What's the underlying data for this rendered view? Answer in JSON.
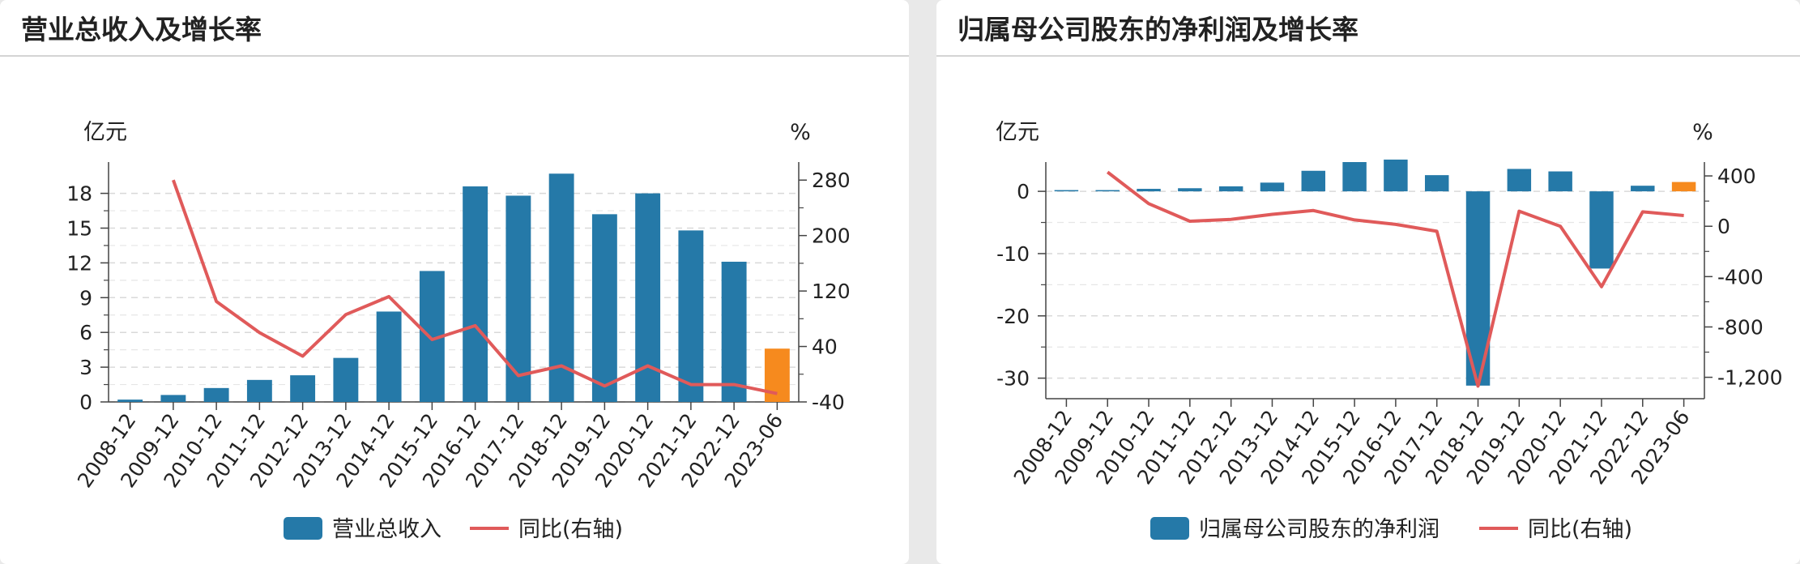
{
  "panels": [
    {
      "title": "营业总收入及增长率",
      "chart_data": {
        "type": "bar",
        "categories": [
          "2008-12",
          "2009-12",
          "2010-12",
          "2011-12",
          "2012-12",
          "2013-12",
          "2014-12",
          "2015-12",
          "2016-12",
          "2017-12",
          "2018-12",
          "2019-12",
          "2020-12",
          "2021-12",
          "2022-12",
          "2023-06"
        ],
        "series": [
          {
            "name": "营业总收入",
            "type": "bar",
            "axis": "left",
            "color": "#2579a8",
            "highlight_color": "#f68a1e",
            "highlight_index": 15,
            "values": [
              0.2,
              0.6,
              1.2,
              1.9,
              2.3,
              3.8,
              7.8,
              11.3,
              18.6,
              17.8,
              19.7,
              16.2,
              18.0,
              14.8,
              12.1,
              4.6
            ]
          },
          {
            "name": "同比(右轴)",
            "type": "line",
            "axis": "right",
            "color": "#e05a5a",
            "values": [
              null,
              280,
              105,
              60,
              26,
              86,
              112,
              50,
              70,
              -2,
              12,
              -17,
              12,
              -15,
              -15,
              -28
            ]
          }
        ],
        "left_unit": "亿元",
        "right_unit": "%",
        "left_ticks": [
          0,
          3,
          6,
          9,
          12,
          15,
          18
        ],
        "left_ylim": [
          0,
          20.7
        ],
        "right_ticks": [
          -40,
          40,
          120,
          200,
          280
        ],
        "right_ylim": [
          -40,
          306
        ],
        "grid": true,
        "legend_position": "bottom"
      }
    },
    {
      "title": "归属母公司股东的净利润及增长率",
      "chart_data": {
        "type": "bar",
        "categories": [
          "2008-12",
          "2009-12",
          "2010-12",
          "2011-12",
          "2012-12",
          "2013-12",
          "2014-12",
          "2015-12",
          "2016-12",
          "2017-12",
          "2018-12",
          "2019-12",
          "2020-12",
          "2021-12",
          "2022-12",
          "2023-06"
        ],
        "series": [
          {
            "name": "归属母公司股东的净利润",
            "type": "bar",
            "axis": "left",
            "color": "#2579a8",
            "highlight_color": "#f68a1e",
            "highlight_index": 15,
            "values": [
              0.2,
              0.2,
              0.4,
              0.5,
              0.8,
              1.4,
              3.3,
              4.7,
              5.1,
              2.6,
              -31.2,
              3.6,
              3.2,
              -12.4,
              0.9,
              1.5
            ]
          },
          {
            "name": "同比(右轴)",
            "type": "line",
            "axis": "right",
            "color": "#e05a5a",
            "values": [
              null,
              430,
              180,
              40,
              55,
              95,
              125,
              50,
              15,
              -40,
              -1270,
              120,
              0,
              -480,
              115,
              85
            ]
          }
        ],
        "left_unit": "亿元",
        "right_unit": "%",
        "left_ticks": [
          -30,
          -20,
          -10,
          0
        ],
        "left_ylim": [
          -33.3,
          4.7
        ],
        "right_ticks": [
          -1200,
          -800,
          -400,
          0,
          400
        ],
        "right_ylim": [
          -1370,
          510
        ],
        "right_tick_labels": [
          "-1,200",
          "-800",
          "-400",
          "0",
          "400"
        ],
        "grid": true,
        "legend_position": "bottom"
      }
    }
  ]
}
